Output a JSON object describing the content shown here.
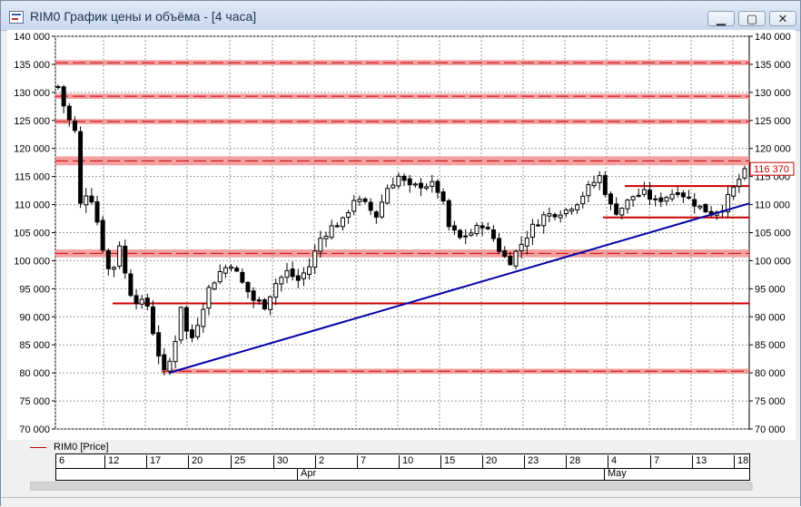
{
  "window": {
    "title": "RIM0 График цены и объёма - [4 часа]",
    "minimize_glyph": "▁",
    "maximize_glyph": "▢",
    "close_glyph": "✕"
  },
  "legend": {
    "label": "RIM0 [Price]",
    "color": "#c00000"
  },
  "chart_data": {
    "type": "candlestick",
    "ylim": [
      70000,
      140000
    ],
    "y_ticks": [
      70000,
      75000,
      80000,
      85000,
      90000,
      95000,
      100000,
      105000,
      110000,
      115000,
      120000,
      125000,
      130000,
      135000,
      140000
    ],
    "y_tick_labels": [
      "70 000",
      "75 000",
      "80 000",
      "85 000",
      "90 000",
      "95 000",
      "100 000",
      "105 000",
      "110 000",
      "115 000",
      "120 000",
      "125 000",
      "130 000",
      "135 000",
      "140 000"
    ],
    "x_ticks": [
      "6",
      "12",
      "17",
      "20",
      "25",
      "30",
      "2",
      "7",
      "10",
      "15",
      "20",
      "23",
      "28",
      "4",
      "7",
      "13",
      "18"
    ],
    "x_month_labels": [
      "Apr",
      "May"
    ],
    "last_price_label": "116 370",
    "last_price": 116370,
    "colors": {
      "candles": "#000000",
      "zones": "#f08080",
      "level": "#cc0000",
      "trend": "#0000aa"
    },
    "trend_line": {
      "from": {
        "date": "Mar 19",
        "value": 80000
      },
      "to": {
        "date": "May 19",
        "value": 110200
      }
    },
    "horizontal_levels": [
      {
        "value": 135300,
        "kind": "zone"
      },
      {
        "value": 129300,
        "kind": "zone"
      },
      {
        "value": 124800,
        "kind": "zone"
      },
      {
        "value": 117800,
        "kind": "zone",
        "width": 1600
      },
      {
        "value": 113300,
        "kind": "line"
      },
      {
        "value": 107700,
        "kind": "line"
      },
      {
        "value": 101300,
        "kind": "zone",
        "width": 1400
      },
      {
        "value": 92400,
        "kind": "line"
      },
      {
        "value": 80300,
        "kind": "zone"
      }
    ],
    "price_path": [
      [
        0,
        131000
      ],
      [
        1.5,
        126000
      ],
      [
        3,
        123000
      ],
      [
        4,
        110000
      ],
      [
        5.5,
        113000
      ],
      [
        7,
        107000
      ],
      [
        8.5,
        100000
      ],
      [
        9.5,
        97000
      ],
      [
        11,
        103000
      ],
      [
        12.5,
        95000
      ],
      [
        14,
        93000
      ],
      [
        16,
        92000
      ],
      [
        17.5,
        85000
      ],
      [
        19,
        80000
      ],
      [
        20.5,
        83000
      ],
      [
        22,
        92000
      ],
      [
        23.5,
        85000
      ],
      [
        25,
        89000
      ],
      [
        27,
        95000
      ],
      [
        29,
        98000
      ],
      [
        31,
        99500
      ],
      [
        33,
        96000
      ],
      [
        35,
        93000
      ],
      [
        37,
        92000
      ],
      [
        39,
        96000
      ],
      [
        41,
        98000
      ],
      [
        43,
        96500
      ],
      [
        45,
        99000
      ],
      [
        47,
        104000
      ],
      [
        49,
        106000
      ],
      [
        51,
        107000
      ],
      [
        53,
        111000
      ],
      [
        55,
        110000
      ],
      [
        57,
        108000
      ],
      [
        59,
        113000
      ],
      [
        61,
        115000
      ],
      [
        63,
        113000
      ],
      [
        65,
        113500
      ],
      [
        67,
        113500
      ],
      [
        68.5,
        112000
      ],
      [
        70,
        106000
      ],
      [
        72,
        104000
      ],
      [
        74,
        105000
      ],
      [
        76,
        106500
      ],
      [
        78,
        104000
      ],
      [
        79.5,
        101000
      ],
      [
        81,
        100000
      ],
      [
        83,
        103000
      ],
      [
        85,
        106000
      ],
      [
        87,
        108000
      ],
      [
        89,
        108500
      ],
      [
        91,
        109000
      ],
      [
        93,
        110500
      ],
      [
        95,
        113000
      ],
      [
        97,
        115000
      ],
      [
        98.5,
        111000
      ],
      [
        99.5,
        108500
      ],
      [
        101,
        109500
      ],
      [
        103,
        111500
      ],
      [
        105,
        112000
      ],
      [
        107,
        110500
      ],
      [
        109,
        111500
      ],
      [
        111,
        112500
      ],
      [
        113,
        111000
      ],
      [
        115,
        109500
      ],
      [
        117,
        108500
      ],
      [
        119,
        109500
      ],
      [
        120.5,
        112000
      ],
      [
        122,
        114500
      ],
      [
        123.5,
        116400
      ]
    ]
  }
}
